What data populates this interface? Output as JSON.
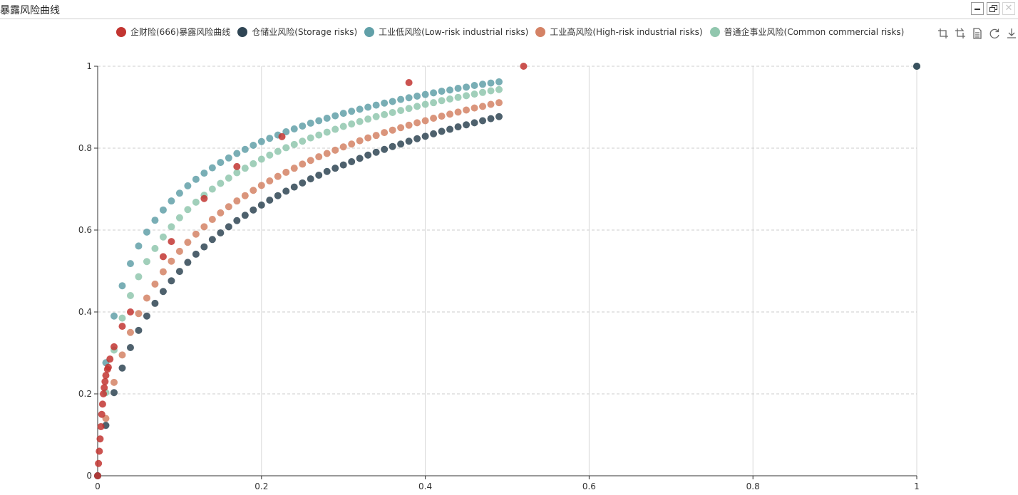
{
  "window": {
    "title": "暴露风险曲线",
    "minimize_icon": "minimize-icon",
    "restore_icon": "restore-icon",
    "close_icon": "close-icon"
  },
  "toolbox": {
    "icons": [
      "zoom-icon",
      "zoom-reset-icon",
      "data-view-icon",
      "restore-chart-icon",
      "save-image-icon"
    ]
  },
  "colors": {
    "series_666": "#c23531",
    "storage": "#2f4554",
    "low_risk": "#61a0a8",
    "high_risk": "#d48265",
    "common": "#91c7ae",
    "grid_dash": "#cccccc",
    "axis": "#333333"
  },
  "chart_data": {
    "type": "scatter",
    "xlim": [
      0,
      1
    ],
    "ylim": [
      0,
      1
    ],
    "x_ticks": [
      "0",
      "0.2",
      "0.4",
      "0.6",
      "0.8",
      "1"
    ],
    "y_ticks": [
      "0",
      "0.2",
      "0.4",
      "0.6",
      "0.8",
      "1"
    ],
    "x_grid": "solid",
    "y_grid": "dashed",
    "legend_position": "top",
    "series": [
      {
        "name": "企财险(666)暴露风险曲线",
        "color": "#c23531",
        "points": [
          [
            0,
            0
          ],
          [
            0.001,
            0.03
          ],
          [
            0.002,
            0.06
          ],
          [
            0.003,
            0.09
          ],
          [
            0.004,
            0.12
          ],
          [
            0.005,
            0.15
          ],
          [
            0.006,
            0.175
          ],
          [
            0.007,
            0.2
          ],
          [
            0.008,
            0.215
          ],
          [
            0.009,
            0.23
          ],
          [
            0.01,
            0.245
          ],
          [
            0.012,
            0.26
          ],
          [
            0.013,
            0.265
          ],
          [
            0.015,
            0.285
          ],
          [
            0.02,
            0.315
          ],
          [
            0.03,
            0.365
          ],
          [
            0.04,
            0.4
          ],
          [
            0.08,
            0.535
          ],
          [
            0.09,
            0.572
          ],
          [
            0.13,
            0.677
          ],
          [
            0.17,
            0.755
          ],
          [
            0.225,
            0.828
          ],
          [
            0.38,
            0.96
          ],
          [
            0.52,
            1.0
          ]
        ]
      },
      {
        "name": "仓储业风险(Storage risks)",
        "color": "#2f4554",
        "points": [
          [
            0,
            0
          ],
          [
            0.01,
            0.123
          ],
          [
            0.02,
            0.203
          ],
          [
            0.03,
            0.263
          ],
          [
            0.04,
            0.313
          ],
          [
            0.05,
            0.355
          ],
          [
            0.06,
            0.39
          ],
          [
            0.07,
            0.421
          ],
          [
            0.08,
            0.45
          ],
          [
            0.09,
            0.476
          ],
          [
            0.1,
            0.499
          ],
          [
            0.11,
            0.521
          ],
          [
            0.12,
            0.541
          ],
          [
            0.13,
            0.559
          ],
          [
            0.14,
            0.577
          ],
          [
            0.15,
            0.593
          ],
          [
            0.16,
            0.608
          ],
          [
            0.17,
            0.623
          ],
          [
            0.18,
            0.636
          ],
          [
            0.19,
            0.649
          ],
          [
            0.2,
            0.661
          ],
          [
            0.21,
            0.673
          ],
          [
            0.22,
            0.684
          ],
          [
            0.23,
            0.695
          ],
          [
            0.24,
            0.705
          ],
          [
            0.25,
            0.715
          ],
          [
            0.26,
            0.725
          ],
          [
            0.27,
            0.734
          ],
          [
            0.28,
            0.743
          ],
          [
            0.29,
            0.751
          ],
          [
            0.3,
            0.759
          ],
          [
            0.31,
            0.767
          ],
          [
            0.32,
            0.775
          ],
          [
            0.33,
            0.783
          ],
          [
            0.34,
            0.79
          ],
          [
            0.35,
            0.797
          ],
          [
            0.36,
            0.804
          ],
          [
            0.37,
            0.81
          ],
          [
            0.38,
            0.817
          ],
          [
            0.39,
            0.823
          ],
          [
            0.4,
            0.829
          ],
          [
            0.41,
            0.835
          ],
          [
            0.42,
            0.841
          ],
          [
            0.43,
            0.846
          ],
          [
            0.44,
            0.852
          ],
          [
            0.45,
            0.857
          ],
          [
            0.46,
            0.862
          ],
          [
            0.47,
            0.867
          ],
          [
            0.48,
            0.872
          ],
          [
            0.49,
            0.877
          ],
          [
            1,
            1
          ]
        ]
      },
      {
        "name": "工业低风险(Low-risk industrial risks)",
        "color": "#61a0a8",
        "points": [
          [
            0,
            0
          ],
          [
            0.01,
            0.276
          ],
          [
            0.02,
            0.39
          ],
          [
            0.03,
            0.464
          ],
          [
            0.04,
            0.518
          ],
          [
            0.05,
            0.561
          ],
          [
            0.06,
            0.595
          ],
          [
            0.07,
            0.624
          ],
          [
            0.08,
            0.649
          ],
          [
            0.09,
            0.671
          ],
          [
            0.1,
            0.69
          ],
          [
            0.11,
            0.708
          ],
          [
            0.12,
            0.724
          ],
          [
            0.13,
            0.739
          ],
          [
            0.14,
            0.752
          ],
          [
            0.15,
            0.765
          ],
          [
            0.16,
            0.776
          ],
          [
            0.17,
            0.787
          ],
          [
            0.18,
            0.797
          ],
          [
            0.19,
            0.807
          ],
          [
            0.2,
            0.816
          ],
          [
            0.21,
            0.824
          ],
          [
            0.22,
            0.832
          ],
          [
            0.23,
            0.84
          ],
          [
            0.24,
            0.847
          ],
          [
            0.25,
            0.854
          ],
          [
            0.26,
            0.861
          ],
          [
            0.27,
            0.867
          ],
          [
            0.28,
            0.873
          ],
          [
            0.29,
            0.879
          ],
          [
            0.3,
            0.885
          ],
          [
            0.31,
            0.89
          ],
          [
            0.32,
            0.895
          ],
          [
            0.33,
            0.9
          ],
          [
            0.34,
            0.905
          ],
          [
            0.35,
            0.91
          ],
          [
            0.36,
            0.914
          ],
          [
            0.37,
            0.919
          ],
          [
            0.38,
            0.923
          ],
          [
            0.39,
            0.927
          ],
          [
            0.4,
            0.931
          ],
          [
            0.41,
            0.935
          ],
          [
            0.42,
            0.939
          ],
          [
            0.43,
            0.942
          ],
          [
            0.44,
            0.946
          ],
          [
            0.45,
            0.949
          ],
          [
            0.46,
            0.953
          ],
          [
            0.47,
            0.956
          ],
          [
            0.48,
            0.959
          ],
          [
            0.49,
            0.962
          ],
          [
            1,
            1
          ]
        ]
      },
      {
        "name": "工业高风险(High-risk industrial risks)",
        "color": "#d48265",
        "points": [
          [
            0,
            0
          ],
          [
            0.01,
            0.14
          ],
          [
            0.02,
            0.228
          ],
          [
            0.03,
            0.295
          ],
          [
            0.04,
            0.35
          ],
          [
            0.05,
            0.396
          ],
          [
            0.06,
            0.434
          ],
          [
            0.07,
            0.468
          ],
          [
            0.08,
            0.498
          ],
          [
            0.09,
            0.524
          ],
          [
            0.1,
            0.548
          ],
          [
            0.11,
            0.57
          ],
          [
            0.12,
            0.59
          ],
          [
            0.13,
            0.608
          ],
          [
            0.14,
            0.626
          ],
          [
            0.15,
            0.642
          ],
          [
            0.16,
            0.657
          ],
          [
            0.17,
            0.671
          ],
          [
            0.18,
            0.684
          ],
          [
            0.19,
            0.697
          ],
          [
            0.2,
            0.709
          ],
          [
            0.21,
            0.72
          ],
          [
            0.22,
            0.731
          ],
          [
            0.23,
            0.741
          ],
          [
            0.24,
            0.751
          ],
          [
            0.25,
            0.761
          ],
          [
            0.26,
            0.77
          ],
          [
            0.27,
            0.779
          ],
          [
            0.28,
            0.787
          ],
          [
            0.29,
            0.795
          ],
          [
            0.3,
            0.803
          ],
          [
            0.31,
            0.81
          ],
          [
            0.32,
            0.818
          ],
          [
            0.33,
            0.825
          ],
          [
            0.34,
            0.831
          ],
          [
            0.35,
            0.838
          ],
          [
            0.36,
            0.844
          ],
          [
            0.37,
            0.85
          ],
          [
            0.38,
            0.856
          ],
          [
            0.39,
            0.862
          ],
          [
            0.4,
            0.867
          ],
          [
            0.41,
            0.873
          ],
          [
            0.42,
            0.878
          ],
          [
            0.43,
            0.883
          ],
          [
            0.44,
            0.888
          ],
          [
            0.45,
            0.893
          ],
          [
            0.46,
            0.898
          ],
          [
            0.47,
            0.902
          ],
          [
            0.48,
            0.907
          ],
          [
            0.49,
            0.911
          ],
          [
            1,
            1
          ]
        ]
      },
      {
        "name": "普通企事业风险(Common commercial risks)",
        "color": "#91c7ae",
        "points": [
          [
            0,
            0
          ],
          [
            0.01,
            0.203
          ],
          [
            0.02,
            0.307
          ],
          [
            0.03,
            0.385
          ],
          [
            0.04,
            0.44
          ],
          [
            0.05,
            0.486
          ],
          [
            0.06,
            0.523
          ],
          [
            0.07,
            0.555
          ],
          [
            0.08,
            0.583
          ],
          [
            0.09,
            0.608
          ],
          [
            0.1,
            0.63
          ],
          [
            0.11,
            0.65
          ],
          [
            0.12,
            0.668
          ],
          [
            0.13,
            0.685
          ],
          [
            0.14,
            0.7
          ],
          [
            0.15,
            0.714
          ],
          [
            0.16,
            0.727
          ],
          [
            0.17,
            0.74
          ],
          [
            0.18,
            0.751
          ],
          [
            0.19,
            0.762
          ],
          [
            0.2,
            0.773
          ],
          [
            0.21,
            0.783
          ],
          [
            0.22,
            0.792
          ],
          [
            0.23,
            0.801
          ],
          [
            0.24,
            0.809
          ],
          [
            0.25,
            0.817
          ],
          [
            0.26,
            0.825
          ],
          [
            0.27,
            0.832
          ],
          [
            0.28,
            0.839
          ],
          [
            0.29,
            0.846
          ],
          [
            0.3,
            0.853
          ],
          [
            0.31,
            0.859
          ],
          [
            0.32,
            0.865
          ],
          [
            0.33,
            0.871
          ],
          [
            0.34,
            0.877
          ],
          [
            0.35,
            0.882
          ],
          [
            0.36,
            0.887
          ],
          [
            0.37,
            0.892
          ],
          [
            0.38,
            0.897
          ],
          [
            0.39,
            0.902
          ],
          [
            0.4,
            0.907
          ],
          [
            0.41,
            0.911
          ],
          [
            0.42,
            0.916
          ],
          [
            0.43,
            0.92
          ],
          [
            0.44,
            0.924
          ],
          [
            0.45,
            0.928
          ],
          [
            0.46,
            0.932
          ],
          [
            0.47,
            0.936
          ],
          [
            0.48,
            0.94
          ],
          [
            0.49,
            0.943
          ],
          [
            1,
            1
          ]
        ]
      }
    ]
  }
}
